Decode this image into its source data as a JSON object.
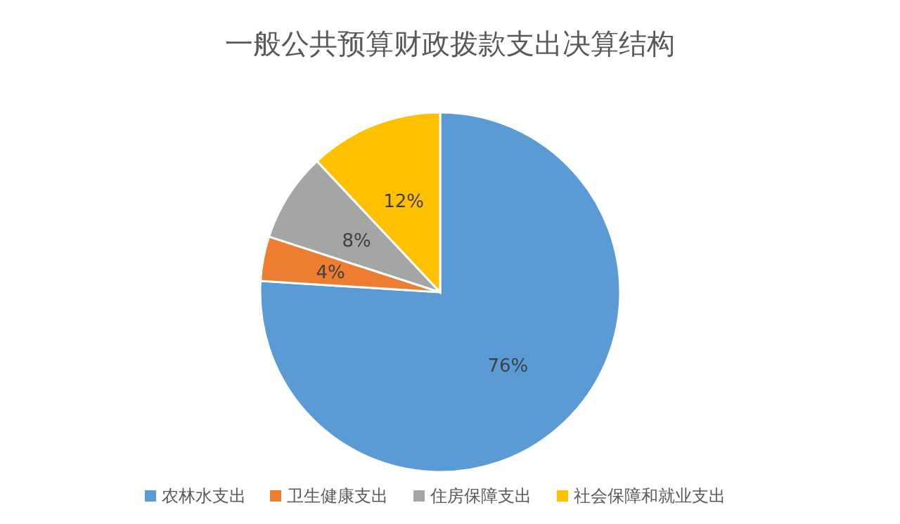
{
  "chart_data": {
    "type": "pie",
    "title": "一般公共预算财政拨款支出决算结构",
    "categories": [
      "农林水支出",
      "卫生健康支出",
      "住房保障支出",
      "社会保障和就业支出"
    ],
    "values": [
      76,
      4,
      8,
      12
    ],
    "colors": [
      "#5b9bd5",
      "#ed7d31",
      "#a5a5a5",
      "#ffc000"
    ],
    "value_labels": [
      "76%",
      "4%",
      "8%",
      "12%"
    ],
    "legend": "bottom"
  }
}
